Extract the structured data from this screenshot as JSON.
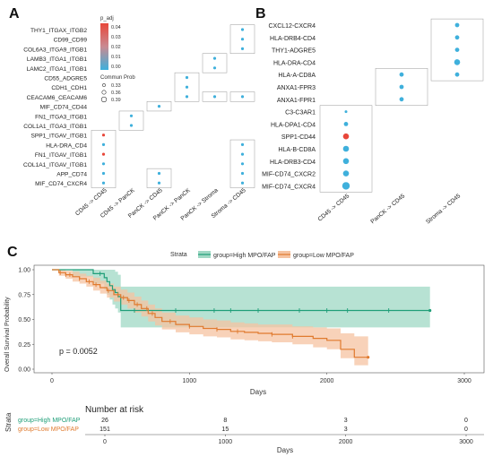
{
  "panel_labels": {
    "a": "A",
    "b": "B",
    "c": "C"
  },
  "colors": {
    "low_prob": "#3fb0dc",
    "high_prob": "#e8473a",
    "high_group": "#1f9e78",
    "low_group": "#e07a2e",
    "high_band": "#9fd8c4",
    "low_band": "#f5c3a1"
  },
  "chart_data": [
    {
      "type": "scatter",
      "id": "A",
      "categories_x": [
        "CD45 -> CD45",
        "CD45 -> PanCK",
        "PanCK -> CD45",
        "PanCK -> PanCK",
        "PanCK -> Stroma",
        "Stroma -> CD45"
      ],
      "categories_y": [
        "THY1_ITGAX_ITGB2",
        "CD99_CD99",
        "COL6A3_ITGA9_ITGB1",
        "LAMB3_ITGA1_ITGB1",
        "LAMC2_ITGA1_ITGB1",
        "CD55_ADGRE5",
        "CDH1_CDH1",
        "CEACAM6_CEACAM6",
        "MIF_CD74_CD44",
        "FN1_ITGA3_ITGB1",
        "COL1A1_ITGA3_ITGB1",
        "SPP1_ITGAV_ITGB1",
        "HLA-DRA_CD4",
        "FN1_ITGAV_ITGB1",
        "COL1A1_ITGAV_ITGB1",
        "APP_CD74",
        "MIF_CD74_CXCR4"
      ],
      "points": [
        {
          "x": "Stroma -> CD45",
          "y": "THY1_ITGAX_ITGB2",
          "pval": 0.0,
          "prob": 0.33
        },
        {
          "x": "Stroma -> CD45",
          "y": "CD99_CD99",
          "pval": 0.0,
          "prob": 0.33
        },
        {
          "x": "Stroma -> CD45",
          "y": "COL6A3_ITGA9_ITGB1",
          "pval": 0.0,
          "prob": 0.33
        },
        {
          "x": "PanCK -> Stroma",
          "y": "LAMB3_ITGA1_ITGB1",
          "pval": 0.0,
          "prob": 0.33
        },
        {
          "x": "PanCK -> Stroma",
          "y": "LAMC2_ITGA1_ITGB1",
          "pval": 0.0,
          "prob": 0.33
        },
        {
          "x": "PanCK -> PanCK",
          "y": "CD55_ADGRE5",
          "pval": 0.0,
          "prob": 0.33
        },
        {
          "x": "PanCK -> PanCK",
          "y": "CDH1_CDH1",
          "pval": 0.0,
          "prob": 0.33
        },
        {
          "x": "PanCK -> PanCK",
          "y": "CEACAM6_CEACAM6",
          "pval": 0.0,
          "prob": 0.33
        },
        {
          "x": "PanCK -> Stroma",
          "y": "CEACAM6_CEACAM6",
          "pval": 0.0,
          "prob": 0.33
        },
        {
          "x": "Stroma -> CD45",
          "y": "CEACAM6_CEACAM6",
          "pval": 0.0,
          "prob": 0.33
        },
        {
          "x": "PanCK -> CD45",
          "y": "MIF_CD74_CD44",
          "pval": 0.0,
          "prob": 0.33
        },
        {
          "x": "CD45 -> PanCK",
          "y": "FN1_ITGA3_ITGB1",
          "pval": 0.0,
          "prob": 0.33
        },
        {
          "x": "CD45 -> PanCK",
          "y": "COL1A1_ITGA3_ITGB1",
          "pval": 0.0,
          "prob": 0.33
        },
        {
          "x": "CD45 -> CD45",
          "y": "SPP1_ITGAV_ITGB1",
          "pval": 0.04,
          "prob": 0.33
        },
        {
          "x": "CD45 -> CD45",
          "y": "HLA-DRA_CD4",
          "pval": 0.0,
          "prob": 0.33
        },
        {
          "x": "Stroma -> CD45",
          "y": "HLA-DRA_CD4",
          "pval": 0.0,
          "prob": 0.33
        },
        {
          "x": "CD45 -> CD45",
          "y": "FN1_ITGAV_ITGB1",
          "pval": 0.04,
          "prob": 0.33
        },
        {
          "x": "Stroma -> CD45",
          "y": "FN1_ITGAV_ITGB1",
          "pval": 0.0,
          "prob": 0.33
        },
        {
          "x": "CD45 -> CD45",
          "y": "COL1A1_ITGAV_ITGB1",
          "pval": 0.0,
          "prob": 0.33
        },
        {
          "x": "Stroma -> CD45",
          "y": "COL1A1_ITGAV_ITGB1",
          "pval": 0.0,
          "prob": 0.33
        },
        {
          "x": "CD45 -> CD45",
          "y": "APP_CD74",
          "pval": 0.0,
          "prob": 0.33
        },
        {
          "x": "PanCK -> CD45",
          "y": "APP_CD74",
          "pval": 0.0,
          "prob": 0.33
        },
        {
          "x": "Stroma -> CD45",
          "y": "APP_CD74",
          "pval": 0.0,
          "prob": 0.33
        },
        {
          "x": "CD45 -> CD45",
          "y": "MIF_CD74_CXCR4",
          "pval": 0.0,
          "prob": 0.33
        },
        {
          "x": "PanCK -> CD45",
          "y": "MIF_CD74_CXCR4",
          "pval": 0.0,
          "prob": 0.33
        },
        {
          "x": "Stroma -> CD45",
          "y": "MIF_CD74_CXCR4",
          "pval": 0.0,
          "prob": 0.33
        }
      ],
      "legend": {
        "color_title": "p_adj",
        "color_ticks": [
          "0.04",
          "0.03",
          "0.02",
          "0.01",
          "0.00"
        ],
        "size_title": "Commun Prob",
        "size_ticks": [
          "0.33",
          "0.36",
          "0.39"
        ]
      }
    },
    {
      "type": "scatter",
      "id": "B",
      "categories_x": [
        "CD45 -> CD45",
        "PanCK -> CD45",
        "Stroma -> CD45"
      ],
      "categories_y": [
        "CXCL12-CXCR4",
        "HLA-DRB4-CD4",
        "THY1-ADGRE5",
        "HLA-DRA-CD4",
        "HLA-A-CD8A",
        "ANXA1-FPR3",
        "ANXA1-FPR1",
        "C3-C3AR1",
        "HLA-DPA1-CD4",
        "SPP1-CD44",
        "HLA-B-CD8A",
        "HLA-DRB3-CD4",
        "MIF-CD74_CXCR2",
        "MIF-CD74_CXCR4"
      ],
      "points": [
        {
          "x": "Stroma -> CD45",
          "y": "CXCL12-CXCR4",
          "level": "low",
          "prob": 2
        },
        {
          "x": "Stroma -> CD45",
          "y": "HLA-DRB4-CD4",
          "level": "low",
          "prob": 2
        },
        {
          "x": "Stroma -> CD45",
          "y": "THY1-ADGRE5",
          "level": "low",
          "prob": 2
        },
        {
          "x": "Stroma -> CD45",
          "y": "HLA-DRA-CD4",
          "level": "low",
          "prob": 3
        },
        {
          "x": "PanCK -> CD45",
          "y": "HLA-A-CD8A",
          "level": "low",
          "prob": 2
        },
        {
          "x": "Stroma -> CD45",
          "y": "HLA-A-CD8A",
          "level": "low",
          "prob": 2
        },
        {
          "x": "PanCK -> CD45",
          "y": "ANXA1-FPR3",
          "level": "low",
          "prob": 2
        },
        {
          "x": "PanCK -> CD45",
          "y": "ANXA1-FPR1",
          "level": "low",
          "prob": 2
        },
        {
          "x": "CD45 -> CD45",
          "y": "C3-C3AR1",
          "level": "low",
          "prob": 1
        },
        {
          "x": "CD45 -> CD45",
          "y": "HLA-DPA1-CD4",
          "level": "low",
          "prob": 2
        },
        {
          "x": "CD45 -> CD45",
          "y": "SPP1-CD44",
          "level": "high",
          "prob": 3
        },
        {
          "x": "CD45 -> CD45",
          "y": "HLA-B-CD8A",
          "level": "low",
          "prob": 3
        },
        {
          "x": "CD45 -> CD45",
          "y": "HLA-DRB3-CD4",
          "level": "low",
          "prob": 3
        },
        {
          "x": "CD45 -> CD45",
          "y": "MIF-CD74_CXCR2",
          "level": "low",
          "prob": 3
        },
        {
          "x": "CD45 -> CD45",
          "y": "MIF-CD74_CXCR4",
          "level": "low",
          "prob": 4
        }
      ]
    },
    {
      "type": "line",
      "id": "C",
      "ylabel": "Overall Survival Probability",
      "xlabel": "Days",
      "xlim": [
        0,
        3000
      ],
      "ylim": [
        0,
        1
      ],
      "x_ticks": [
        0,
        1000,
        2000,
        3000
      ],
      "y_ticks": [
        "0.00",
        "0.25",
        "0.50",
        "0.75",
        "1.00"
      ],
      "legend_title": "Strata",
      "annotation": "p = 0.0052",
      "series": [
        {
          "name": "group=High MPO/FAP",
          "x": [
            0,
            150,
            300,
            380,
            400,
            420,
            440,
            460,
            480,
            500,
            2750
          ],
          "y": [
            1.0,
            1.0,
            0.96,
            0.92,
            0.88,
            0.84,
            0.8,
            0.77,
            0.73,
            0.59,
            0.59
          ],
          "ci_upper": [
            1.0,
            1.0,
            1.0,
            1.0,
            1.0,
            1.0,
            1.0,
            0.98,
            0.95,
            0.83,
            0.83
          ],
          "ci_lower": [
            1.0,
            0.93,
            0.86,
            0.8,
            0.75,
            0.7,
            0.65,
            0.61,
            0.57,
            0.42,
            0.42
          ],
          "censor_x": [
            350,
            600,
            900,
            1180,
            1300,
            1500,
            1800,
            2000,
            2150,
            2450
          ]
        },
        {
          "name": "group=Low MPO/FAP",
          "x": [
            0,
            50,
            100,
            150,
            200,
            250,
            300,
            350,
            400,
            450,
            500,
            550,
            600,
            650,
            700,
            750,
            800,
            900,
            1000,
            1100,
            1200,
            1300,
            1400,
            1500,
            1600,
            1750,
            1900,
            2000,
            2100,
            2200,
            2300
          ],
          "y": [
            1.0,
            0.97,
            0.95,
            0.93,
            0.91,
            0.88,
            0.85,
            0.82,
            0.79,
            0.75,
            0.72,
            0.69,
            0.65,
            0.61,
            0.56,
            0.52,
            0.48,
            0.45,
            0.43,
            0.41,
            0.4,
            0.38,
            0.37,
            0.36,
            0.35,
            0.33,
            0.31,
            0.29,
            0.2,
            0.12,
            0.12
          ],
          "ci_upper": [
            1.0,
            1.0,
            0.99,
            0.98,
            0.96,
            0.94,
            0.92,
            0.89,
            0.86,
            0.83,
            0.8,
            0.77,
            0.73,
            0.69,
            0.65,
            0.61,
            0.57,
            0.54,
            0.52,
            0.5,
            0.49,
            0.47,
            0.46,
            0.45,
            0.45,
            0.43,
            0.42,
            0.41,
            0.36,
            0.33,
            0.33
          ],
          "ci_lower": [
            1.0,
            0.94,
            0.91,
            0.88,
            0.86,
            0.83,
            0.79,
            0.76,
            0.72,
            0.68,
            0.65,
            0.61,
            0.57,
            0.53,
            0.48,
            0.44,
            0.4,
            0.37,
            0.35,
            0.33,
            0.32,
            0.3,
            0.29,
            0.28,
            0.27,
            0.25,
            0.22,
            0.2,
            0.11,
            0.04,
            0.04
          ],
          "censor_x": [
            60,
            100,
            130,
            200,
            270,
            320,
            410,
            480,
            520,
            560,
            620,
            690,
            730,
            860,
            1000,
            1200,
            1350,
            1600,
            1750
          ]
        }
      ]
    },
    {
      "type": "table",
      "id": "C-risk",
      "title": "Number at risk",
      "ylabel": "Strata",
      "xlabel": "Days",
      "x_ticks": [
        0,
        1000,
        2000,
        3000
      ],
      "rows": [
        {
          "name": "group=High MPO/FAP",
          "values": [
            26,
            8,
            3,
            0
          ]
        },
        {
          "name": "group=Low MPO/FAP",
          "values": [
            151,
            15,
            3,
            0
          ]
        }
      ]
    }
  ]
}
